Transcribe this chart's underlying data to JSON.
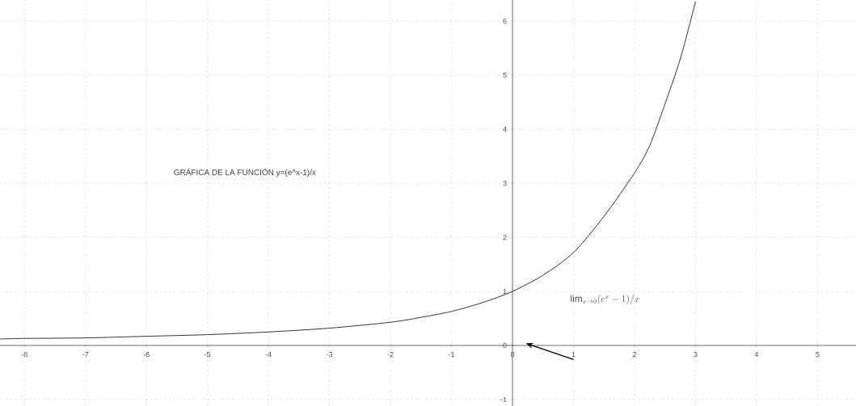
{
  "chart_data": {
    "type": "line",
    "x": [
      -8.4,
      -8,
      -7,
      -6,
      -5,
      -4,
      -3,
      -2,
      -1.5,
      -1,
      -0.5,
      0,
      0.5,
      1,
      1.5,
      2,
      2.25,
      2.5,
      2.75,
      3
    ],
    "series": [
      {
        "color": "#333333",
        "values": [
          0.12,
          0.13,
          0.14,
          0.17,
          0.2,
          0.25,
          0.32,
          0.43,
          0.52,
          0.63,
          0.79,
          1,
          1.3,
          1.72,
          2.39,
          3.19,
          3.7,
          4.47,
          5.3,
          6.36
        ]
      }
    ],
    "xlim": [
      -8.4,
      5.63
    ],
    "ylim": [
      -1.12,
      6.39
    ],
    "xticks": [
      -8,
      -7,
      -6,
      -5,
      -4,
      -3,
      -2,
      -1,
      0,
      1,
      2,
      3,
      4,
      5
    ],
    "yticks": [
      -1,
      0,
      1,
      2,
      3,
      4,
      5,
      6
    ],
    "grid": true,
    "marker": "none",
    "line_style": "solid",
    "annotations": [
      "GRÁFICA DE LA FUNCIÓN y=(e^x-1)/x",
      "\\lim_{x\\to 0}(e^x-1)/x"
    ]
  }
}
